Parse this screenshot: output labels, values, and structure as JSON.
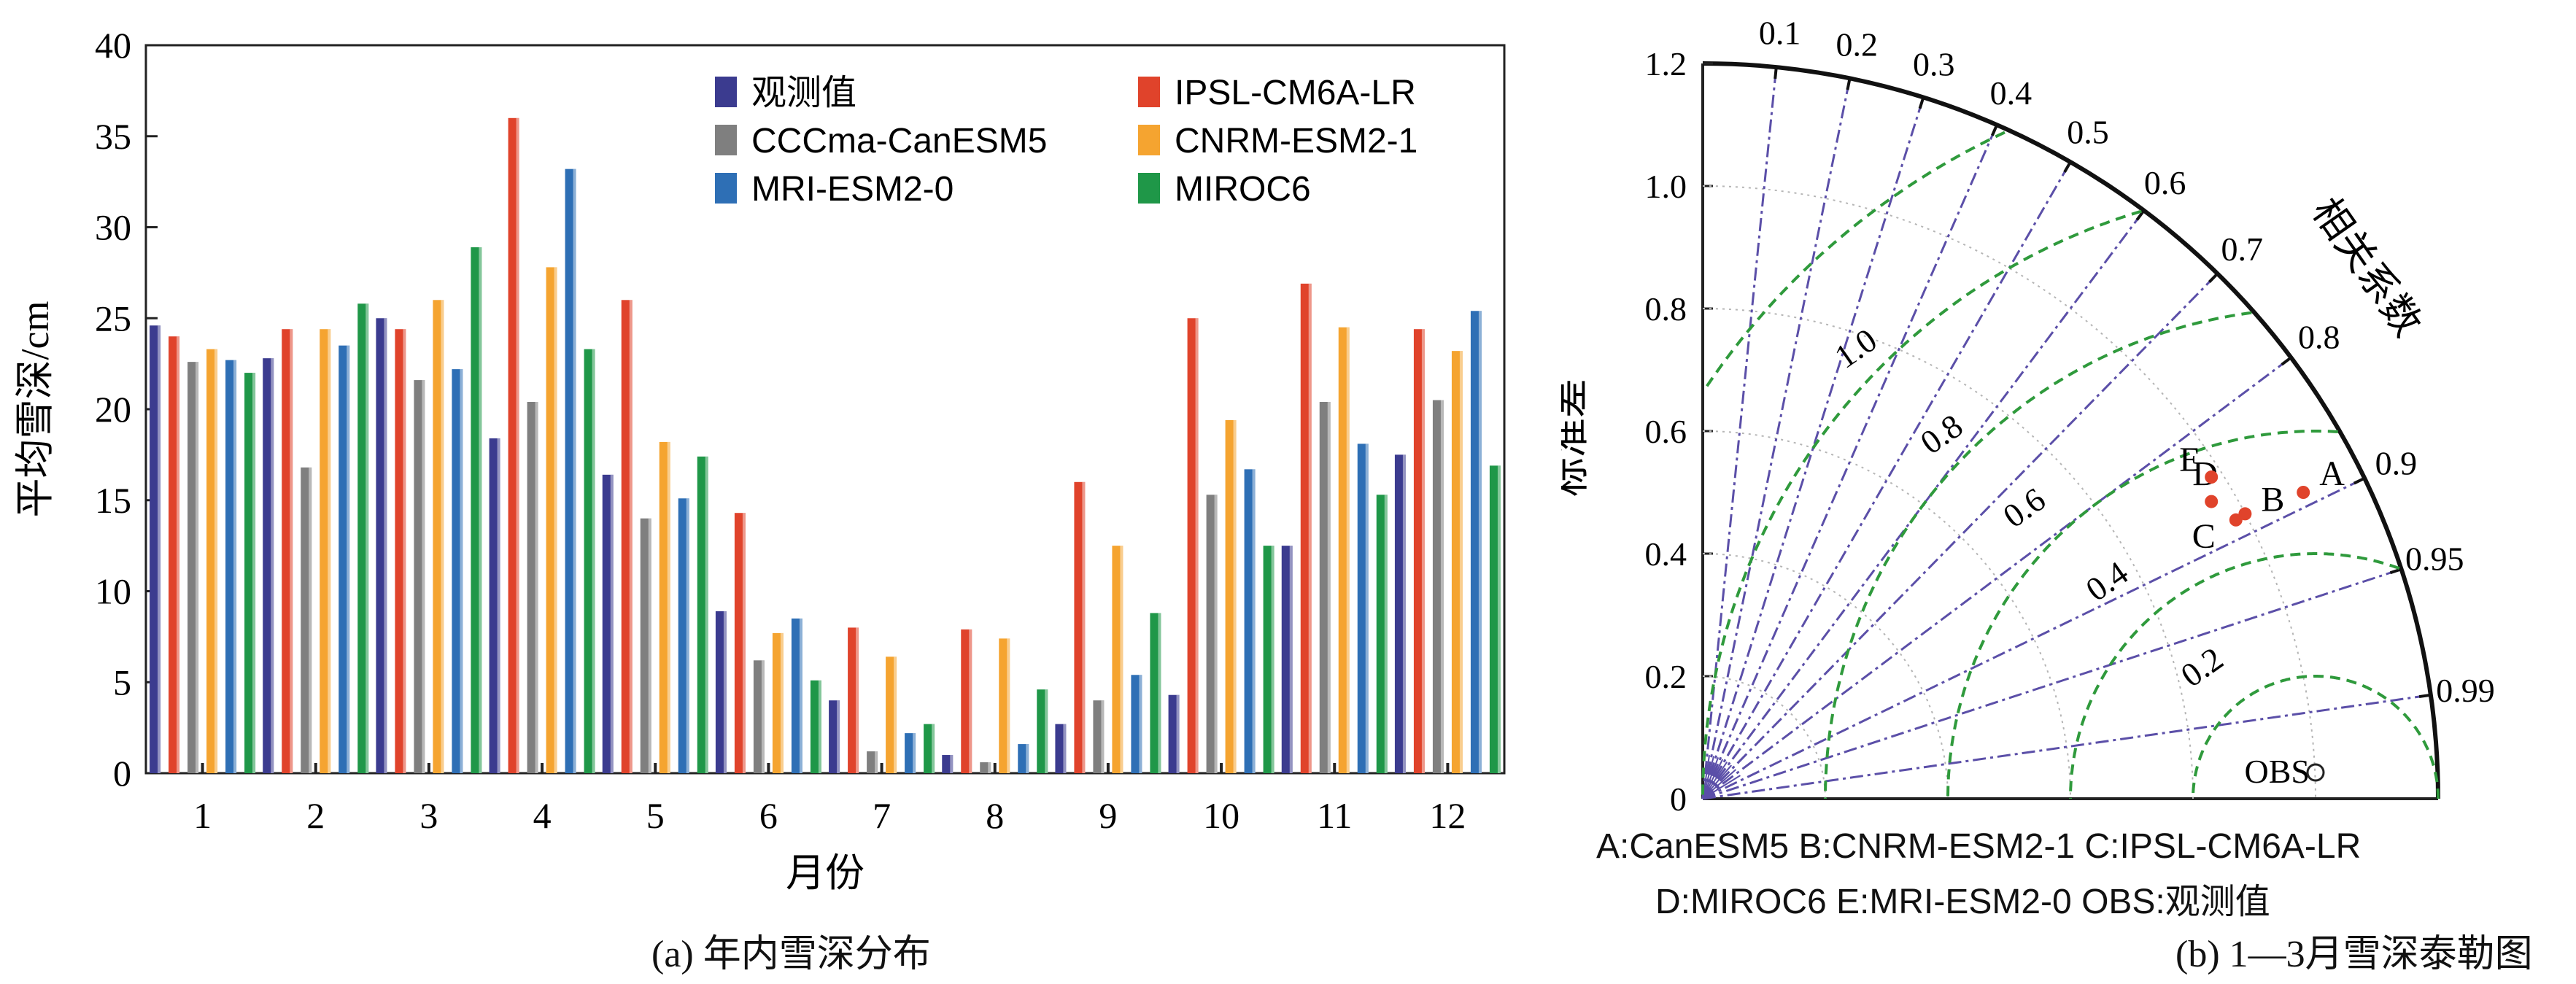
{
  "captions": {
    "a": "(a) 年内雪深分布",
    "b": "(b) 1—3月雪深泰勒图"
  },
  "chart_data": [
    {
      "type": "bar",
      "title": "",
      "xlabel": "月份",
      "ylabel": "平均雪深/cm",
      "ylim": [
        0,
        40
      ],
      "yticks": [
        0,
        5,
        10,
        15,
        20,
        25,
        30,
        35,
        40
      ],
      "categories": [
        "1",
        "2",
        "3",
        "4",
        "5",
        "6",
        "7",
        "8",
        "9",
        "10",
        "11",
        "12"
      ],
      "legend_placement": "top-right",
      "grid": false,
      "series": [
        {
          "name": "观测值",
          "color": "#3b3b8f",
          "values": [
            24.6,
            22.8,
            25.0,
            18.4,
            16.4,
            8.9,
            4.0,
            1.0,
            2.7,
            4.3,
            12.5,
            17.5
          ]
        },
        {
          "name": "IPSL-CM6A-LR",
          "color": "#e0432b",
          "values": [
            24.0,
            24.4,
            24.4,
            36.0,
            26.0,
            14.3,
            8.0,
            7.9,
            16.0,
            25.0,
            26.9,
            24.4
          ]
        },
        {
          "name": "CCCma-CanESM5",
          "color": "#7f7f7f",
          "values": [
            22.6,
            16.8,
            21.6,
            20.4,
            14.0,
            6.2,
            1.2,
            0.6,
            4.0,
            15.3,
            20.4,
            20.5
          ]
        },
        {
          "name": "CNRM-ESM2-1",
          "color": "#f5a430",
          "values": [
            23.3,
            24.4,
            26.0,
            27.8,
            18.2,
            7.7,
            6.4,
            7.4,
            12.5,
            19.4,
            24.5,
            23.2
          ]
        },
        {
          "name": "MRI-ESM2-0",
          "color": "#2e6fb5",
          "values": [
            22.7,
            23.5,
            22.2,
            33.2,
            15.1,
            8.5,
            2.2,
            1.6,
            5.4,
            16.7,
            18.1,
            25.4
          ]
        },
        {
          "name": "MIROC6",
          "color": "#1f9748",
          "values": [
            22.0,
            25.8,
            28.9,
            23.3,
            17.4,
            5.1,
            2.7,
            4.6,
            8.8,
            12.5,
            15.3,
            16.9
          ]
        }
      ]
    },
    {
      "type": "scatter",
      "subtype": "taylor-diagram",
      "title": "",
      "ylabel": "标准差",
      "arc_label": "相关系数",
      "std_ticks": [
        "0",
        "0.2",
        "0.4",
        "0.6",
        "0.8",
        "1.0",
        "1.2"
      ],
      "std_max": 1.2,
      "correlation_ticks": [
        "0.1",
        "0.2",
        "0.3",
        "0.4",
        "0.5",
        "0.6",
        "0.7",
        "0.8",
        "0.9",
        "0.95",
        "0.99"
      ],
      "rmsd_labels": [
        "0.2",
        "0.4",
        "0.6",
        "0.8",
        "1.0"
      ],
      "ref_std": 1.0,
      "obs_label": "OBS",
      "point_color": "#e0432b",
      "points": [
        {
          "label": "A",
          "x": 0.98,
          "y": 0.5
        },
        {
          "label": "B",
          "x": 0.885,
          "y": 0.465
        },
        {
          "label": "C",
          "x": 0.87,
          "y": 0.455
        },
        {
          "label": "D",
          "x": 0.83,
          "y": 0.485
        },
        {
          "label": "E",
          "x": 0.83,
          "y": 0.525
        }
      ],
      "abbreviations": [
        "A:CanESM5 B:CNRM-ESM2-1 C:IPSL-CM6A-LR",
        "D:MIROC6 E:MRI-ESM2-0 OBS:观测值"
      ]
    }
  ]
}
